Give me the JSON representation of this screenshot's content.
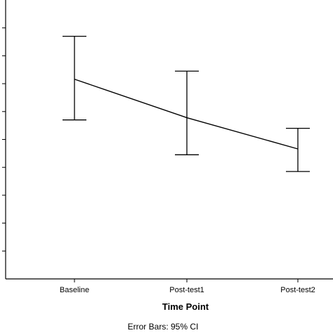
{
  "chart_data": {
    "type": "line",
    "categories": [
      "Baseline",
      "Post-test1",
      "Post-test2"
    ],
    "series": [
      {
        "values": [
          0.716,
          0.578,
          0.466
        ],
        "ci_upper": [
          0.87,
          0.745,
          0.54
        ],
        "ci_lower": [
          0.57,
          0.445,
          0.385
        ]
      }
    ],
    "xlabel": "Time Point",
    "ylabel": "",
    "ylim": [
      0,
      1
    ],
    "y_ticks_visible": [
      0.1,
      0.2,
      0.3,
      0.4,
      0.5,
      0.6,
      0.7,
      0.8,
      0.9
    ],
    "grid": false,
    "line_color": "#000000",
    "footnote": "Error Bars: 95% CI"
  }
}
